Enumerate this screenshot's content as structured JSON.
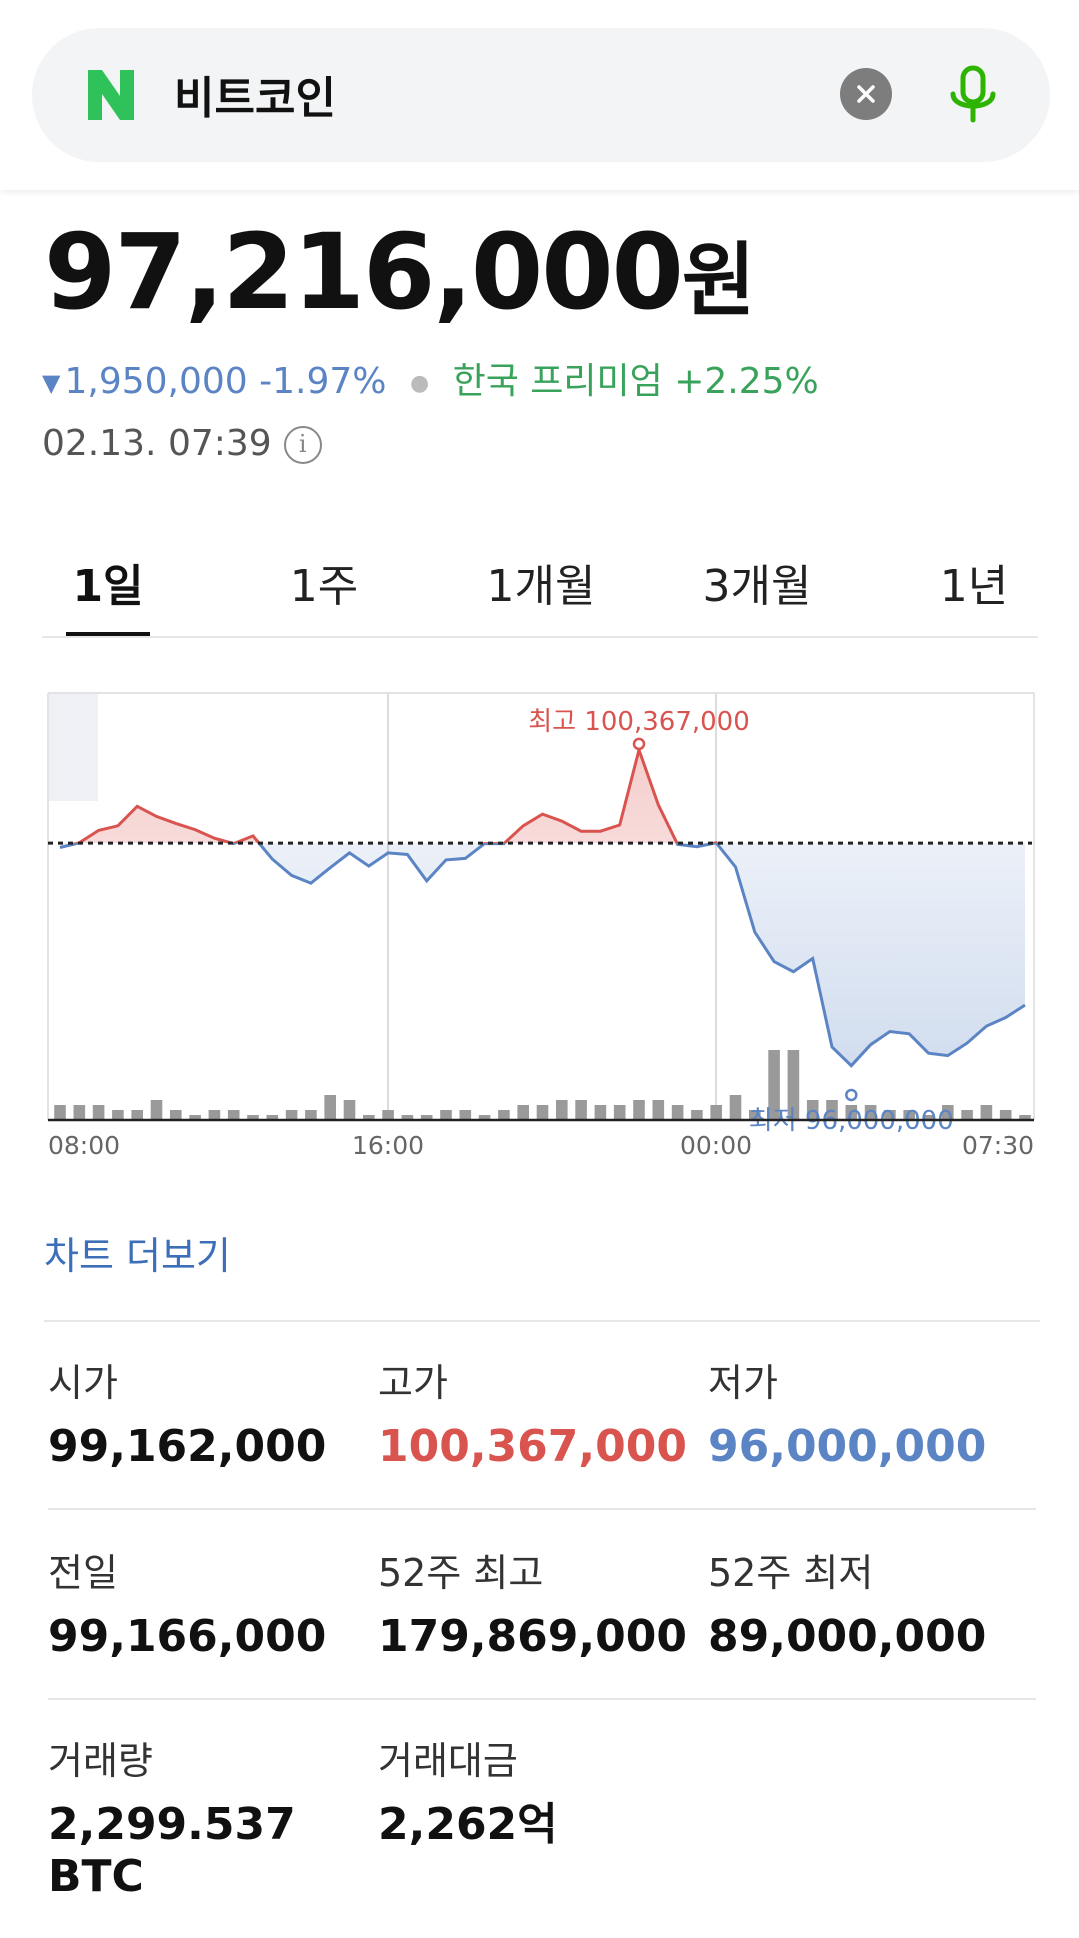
{
  "search": {
    "query": "비트코인"
  },
  "quote": {
    "price": "97,216,000",
    "unit": "원",
    "change_amount": "1,950,000",
    "change_percent": "-1.97%",
    "premium_label": "한국 프리미엄",
    "premium_value": "+2.25%",
    "timestamp": "02.13. 07:39"
  },
  "tabs": [
    "1일",
    "1주",
    "1개월",
    "3개월",
    "1년"
  ],
  "active_tab": "1일",
  "chart_data": {
    "type": "line",
    "title": "",
    "x_tick_labels": [
      "08:00",
      "16:00",
      "00:00",
      "07:30"
    ],
    "baseline_value": 99166000,
    "high_label": "최고 100,367,000",
    "low_label": "최저 96,000,000",
    "high_value": 100367000,
    "low_value": 96000000,
    "ylim": [
      95600000,
      101100000
    ],
    "series": [
      {
        "values": [
          99110000,
          99170000,
          99330000,
          99390000,
          99640000,
          99510000,
          99420000,
          99340000,
          99230000,
          99160000,
          99260000,
          98960000,
          98750000,
          98650000,
          98850000,
          99040000,
          98870000,
          99040000,
          99020000,
          98680000,
          98950000,
          98970000,
          99160000,
          99160000,
          99390000,
          99540000,
          99450000,
          99320000,
          99320000,
          99400000,
          100367000,
          99660000,
          99150000,
          99120000,
          99170000,
          98860000,
          98020000,
          97640000,
          97510000,
          97680000,
          96540000,
          96300000,
          96570000,
          96740000,
          96710000,
          96460000,
          96430000,
          96590000,
          96810000,
          96920000,
          97080000
        ]
      }
    ],
    "volume": [
      3,
      3,
      3,
      2,
      2,
      4,
      2,
      1,
      2,
      2,
      1,
      1,
      2,
      2,
      5,
      4,
      1,
      2,
      1,
      1,
      2,
      2,
      1,
      2,
      3,
      3,
      4,
      4,
      3,
      3,
      4,
      4,
      3,
      2,
      3,
      5,
      2,
      14,
      14,
      4,
      4,
      3,
      3,
      2,
      2,
      1,
      3,
      2,
      3,
      2,
      1
    ]
  },
  "more_chart_label": "차트 더보기",
  "stats": {
    "open": {
      "label": "시가",
      "value": "99,162,000"
    },
    "high": {
      "label": "고가",
      "value": "100,367,000"
    },
    "low": {
      "label": "저가",
      "value": "96,000,000"
    },
    "prev": {
      "label": "전일",
      "value": "99,166,000"
    },
    "high52": {
      "label": "52주 최고",
      "value": "179,869,000"
    },
    "low52": {
      "label": "52주 최저",
      "value": "89,000,000"
    },
    "volume": {
      "label": "거래량",
      "value": "2,299.537 BTC"
    },
    "amount": {
      "label": "거래대금",
      "value": "2,262억"
    }
  },
  "colors": {
    "up": "#d9534f",
    "down": "#5b84c4",
    "premium": "#3aa35b",
    "brand": "#2db400"
  }
}
